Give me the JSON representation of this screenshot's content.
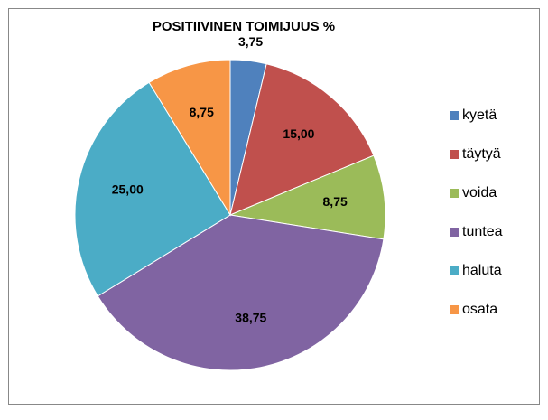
{
  "chart_data": {
    "type": "pie",
    "title": "POSITIIVINEN TOIMIJUUS %",
    "categories": [
      "kyetä",
      "täytyä",
      "voida",
      "tuntea",
      "haluta",
      "osata"
    ],
    "values": [
      3.75,
      15,
      8.75,
      38.75,
      25,
      8.75
    ],
    "value_labels": [
      "3,75",
      "15,00",
      "8,75",
      "38,75",
      "25,00",
      "8,75"
    ],
    "colors": [
      "#4F81BD",
      "#C0504D",
      "#9BBB59",
      "#8064A2",
      "#4BACC6",
      "#F79646"
    ],
    "legend": "right"
  }
}
